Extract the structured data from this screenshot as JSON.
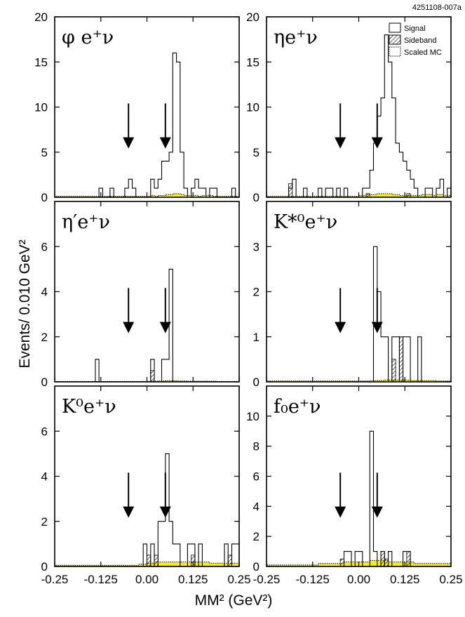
{
  "figure_id": "4251108-007a",
  "y_axis_title": "Events/ 0.010 GeV²",
  "x_axis_title": "MM² (GeV²)",
  "colors": {
    "signal": "#000000",
    "mc_fill": "#f5e830",
    "mc_line": "#000000"
  },
  "legend": [
    {
      "label": "Signal",
      "style": "open"
    },
    {
      "label": "Sideband",
      "style": "hatched"
    },
    {
      "label": "Scaled MC",
      "style": "dotted"
    }
  ],
  "chart_data": [
    {
      "type": "bar",
      "label": "φ e⁺ν",
      "xlim": [
        -0.25,
        0.25
      ],
      "ylim": [
        0,
        20
      ],
      "yticks": [
        "0",
        "5",
        "10",
        "15",
        "20"
      ],
      "xticks": [
        "-0.25",
        "-0.125",
        "0.00",
        "0.125",
        "0.25"
      ],
      "signal_cuts": [
        -0.05,
        0.05
      ],
      "signal": {
        "start": -0.25,
        "width": 0.01,
        "values": [
          0,
          0,
          0,
          0,
          0,
          0,
          0,
          0,
          0,
          0,
          0,
          0,
          1,
          0,
          0,
          1,
          0,
          0,
          0,
          1,
          2,
          1,
          0,
          0,
          0,
          0,
          2,
          1,
          2,
          4,
          4,
          5,
          16,
          15,
          5,
          1,
          0,
          1,
          2,
          1,
          1,
          0,
          1,
          1,
          0,
          0,
          0,
          0,
          1,
          0
        ]
      },
      "sideband": {
        "start": -0.25,
        "width": 0.01,
        "values": [
          0,
          0,
          0,
          0,
          0,
          0,
          0,
          0,
          0,
          0,
          0,
          0,
          0,
          0,
          0,
          0,
          0,
          0,
          0,
          0,
          0,
          0,
          0,
          0,
          0,
          0,
          0,
          0,
          0,
          0,
          0,
          0,
          0,
          0,
          0,
          0,
          0,
          0,
          0,
          0,
          0,
          0,
          0,
          0,
          0,
          0,
          0,
          0,
          0,
          0
        ]
      },
      "scaled_mc": {
        "start": -0.25,
        "width": 0.01,
        "values": [
          0.1,
          0.1,
          0.1,
          0.1,
          0.1,
          0.1,
          0.1,
          0.1,
          0.1,
          0.1,
          0.1,
          0.1,
          0.1,
          0.1,
          0.1,
          0.1,
          0.1,
          0.1,
          0.1,
          0.1,
          0.1,
          0.1,
          0.1,
          0.1,
          0.1,
          0.1,
          0.2,
          0.1,
          0.2,
          0.2,
          0.3,
          0.3,
          0.4,
          0.4,
          0.3,
          0.2,
          0.2,
          0.2,
          0.2,
          0.1,
          0.2,
          0.2,
          0.2,
          0.1,
          0.1,
          0.1,
          0.1,
          0.1,
          0.1,
          0.1
        ]
      }
    },
    {
      "type": "bar",
      "label": "ηe⁺ν",
      "xlim": [
        -0.25,
        0.25
      ],
      "ylim": [
        0,
        20
      ],
      "yticks": [
        "0",
        "5",
        "10",
        "15",
        "20"
      ],
      "xticks": [
        "-0.25",
        "-0.125",
        "0.00",
        "0.125",
        "0.25"
      ],
      "signal_cuts": [
        -0.05,
        0.05
      ],
      "signal": {
        "start": -0.25,
        "width": 0.01,
        "values": [
          0,
          0,
          0,
          0,
          0,
          0,
          1,
          2,
          0,
          0,
          1,
          0,
          0,
          0,
          1,
          0,
          1,
          1,
          0,
          1,
          0,
          1,
          0,
          0,
          0,
          0,
          1,
          1,
          3,
          6,
          9,
          11,
          18,
          15,
          11,
          6,
          5,
          4,
          3,
          2,
          1,
          0,
          0,
          1,
          1,
          0,
          1,
          2,
          0,
          1
        ]
      },
      "sideband": {
        "start": -0.25,
        "width": 0.01,
        "values": [
          0,
          0,
          0,
          0,
          0,
          0,
          1.5,
          0,
          0,
          0,
          0,
          0,
          0,
          0,
          0,
          0,
          0,
          0,
          0,
          0,
          0,
          0,
          0,
          0,
          0,
          0,
          0,
          0.4,
          0,
          0,
          0,
          0,
          0,
          0,
          0,
          0,
          0,
          0,
          0.4,
          0,
          0,
          0,
          0,
          0,
          0,
          0,
          0,
          0,
          0,
          0
        ]
      },
      "scaled_mc": {
        "start": -0.25,
        "width": 0.01,
        "values": [
          0.1,
          0.1,
          0.1,
          0.1,
          0.1,
          0.1,
          0.1,
          0.1,
          0.1,
          0.1,
          0.1,
          0.1,
          0.1,
          0.1,
          0.1,
          0.1,
          0.1,
          0.1,
          0.1,
          0.1,
          0.1,
          0.1,
          0.1,
          0.1,
          0.1,
          0.2,
          0.2,
          0.3,
          0.3,
          0.3,
          0.4,
          0.4,
          0.4,
          0.4,
          0.3,
          0.3,
          0.2,
          0.2,
          0.2,
          0.2,
          0.2,
          0.2,
          0.3,
          0.3,
          0.3,
          0.2,
          0.3,
          0.3,
          0.2,
          0.2
        ]
      }
    },
    {
      "type": "bar",
      "label": "η′e⁺ν",
      "xlim": [
        -0.25,
        0.25
      ],
      "ylim": [
        0,
        8
      ],
      "yticks": [
        "0",
        "2",
        "4",
        "6"
      ],
      "xticks": [
        "-0.25",
        "-0.125",
        "0.00",
        "0.125",
        "0.25"
      ],
      "signal_cuts": [
        -0.05,
        0.05
      ],
      "signal": {
        "start": -0.25,
        "width": 0.01,
        "values": [
          0,
          0,
          0,
          0,
          0,
          0,
          0,
          0,
          0,
          0,
          0,
          1,
          0,
          0,
          0,
          0,
          0,
          0,
          0,
          0,
          0,
          0,
          0,
          0,
          0,
          0,
          1,
          0,
          0,
          1,
          1,
          5,
          0,
          0,
          0,
          0,
          0,
          0,
          0,
          0,
          0,
          0,
          0,
          0,
          0,
          0,
          0,
          0,
          0,
          0
        ]
      },
      "sideband": {
        "start": -0.25,
        "width": 0.01,
        "values": [
          0,
          0,
          0,
          0,
          0,
          0,
          0,
          0,
          0,
          0,
          0,
          0,
          0,
          0,
          0,
          0,
          0,
          0,
          0,
          0,
          0,
          0,
          0,
          0,
          0,
          0,
          0.5,
          0,
          0,
          0,
          0,
          0,
          0,
          0,
          0,
          0,
          0,
          0,
          0,
          0,
          0,
          0,
          0,
          0,
          0,
          0,
          0,
          0,
          0,
          0
        ]
      },
      "scaled_mc": {
        "start": -0.25,
        "width": 0.01,
        "values": [
          0.02,
          0.02,
          0.02,
          0.02,
          0.02,
          0.02,
          0.02,
          0.02,
          0.02,
          0.02,
          0.02,
          0.02,
          0.02,
          0.02,
          0.02,
          0.02,
          0.02,
          0.02,
          0.02,
          0.02,
          0.02,
          0.02,
          0.02,
          0.02,
          0.02,
          0.02,
          0.03,
          0.03,
          0.04,
          0.04,
          0.05,
          0.05,
          0.05,
          0.04,
          0.04,
          0.04,
          0.03,
          0.03,
          0.03,
          0.03,
          0.03,
          0.03,
          0.03,
          0.03,
          0.02,
          0.02,
          0.02,
          0.02,
          0.02,
          0.02
        ]
      }
    },
    {
      "type": "bar",
      "label": "K*⁰e⁺ν",
      "xlim": [
        -0.25,
        0.25
      ],
      "ylim": [
        0,
        4
      ],
      "yticks": [
        "0",
        "1",
        "2",
        "3"
      ],
      "xticks": [
        "-0.25",
        "-0.125",
        "0.00",
        "0.125",
        "0.25"
      ],
      "signal_cuts": [
        -0.05,
        0.05
      ],
      "signal": {
        "start": -0.25,
        "width": 0.01,
        "values": [
          0,
          0,
          0,
          0,
          0,
          0,
          0,
          0,
          0,
          0,
          0,
          0,
          0,
          0,
          0,
          0,
          0,
          0,
          0,
          0,
          0,
          0,
          0,
          0,
          0,
          0,
          0,
          0,
          0,
          3,
          2,
          1,
          1,
          0,
          1,
          1,
          0,
          1,
          1,
          0,
          0,
          1,
          0,
          0,
          0,
          0,
          0,
          0,
          0,
          0
        ]
      },
      "sideband": {
        "start": -0.25,
        "width": 0.01,
        "values": [
          0,
          0,
          0,
          0,
          0,
          0,
          0,
          0,
          0,
          0,
          0,
          0,
          0,
          0,
          0,
          0,
          0,
          0,
          0,
          0,
          0,
          0,
          0,
          0,
          0,
          0,
          0,
          0,
          0,
          0,
          0,
          0,
          0,
          0,
          0.5,
          0,
          1,
          0,
          0,
          0,
          0,
          0,
          0,
          0,
          0,
          0,
          0,
          0,
          0,
          0
        ]
      },
      "scaled_mc": {
        "start": -0.25,
        "width": 0.01,
        "values": [
          0.02,
          0.02,
          0.02,
          0.02,
          0.02,
          0.02,
          0.02,
          0.02,
          0.02,
          0.02,
          0.02,
          0.02,
          0.02,
          0.02,
          0.02,
          0.02,
          0.02,
          0.02,
          0.02,
          0.02,
          0.02,
          0.02,
          0.02,
          0.02,
          0.02,
          0.02,
          0.02,
          0.02,
          0.03,
          0.03,
          0.03,
          0.03,
          0.04,
          0.04,
          0.04,
          0.04,
          0.04,
          0.04,
          0.04,
          0.03,
          0.03,
          0.03,
          0.03,
          0.03,
          0.03,
          0.03,
          0.02,
          0.02,
          0.02,
          0.02
        ]
      }
    },
    {
      "type": "bar",
      "label": "K⁰e⁺ν",
      "xlim": [
        -0.25,
        0.25
      ],
      "ylim": [
        0,
        8
      ],
      "yticks": [
        "0",
        "2",
        "4",
        "6"
      ],
      "xticks": [
        "-0.25",
        "-0.125",
        "0.00",
        "0.125",
        "0.25"
      ],
      "signal_cuts": [
        -0.05,
        0.05
      ],
      "signal": {
        "start": -0.25,
        "width": 0.01,
        "values": [
          0,
          0,
          0,
          0,
          0,
          0,
          0,
          0,
          0,
          0,
          0,
          0,
          0,
          0,
          0,
          0,
          0,
          0,
          0,
          0,
          0,
          0,
          0,
          0,
          1,
          0,
          1,
          0,
          2,
          2,
          5,
          2,
          1,
          1,
          0,
          0,
          1,
          1,
          0,
          1,
          0,
          0,
          0,
          0,
          0,
          0,
          1,
          0,
          1,
          1
        ]
      },
      "sideband": {
        "start": -0.25,
        "width": 0.01,
        "values": [
          0,
          0,
          0,
          0,
          0,
          0,
          0,
          0,
          0,
          0,
          0,
          0,
          0,
          0,
          0,
          0,
          0,
          0,
          0,
          0,
          0,
          0,
          0,
          0,
          0,
          0.5,
          0,
          0.5,
          0,
          0,
          0,
          0,
          0,
          0,
          0,
          0,
          0,
          0.5,
          0,
          0,
          0,
          0,
          0,
          0,
          0,
          0,
          0,
          0.5,
          0,
          0
        ]
      },
      "scaled_mc": {
        "start": -0.25,
        "width": 0.01,
        "values": [
          0.05,
          0.05,
          0.05,
          0.05,
          0.05,
          0.05,
          0.05,
          0.05,
          0.05,
          0.05,
          0.05,
          0.05,
          0.05,
          0.05,
          0.05,
          0.05,
          0.05,
          0.05,
          0.05,
          0.05,
          0.05,
          0.05,
          0.05,
          0.1,
          0.1,
          0.15,
          0.15,
          0.2,
          0.2,
          0.2,
          0.2,
          0.2,
          0.2,
          0.2,
          0.2,
          0.2,
          0.2,
          0.2,
          0.2,
          0.2,
          0.2,
          0.2,
          0.15,
          0.15,
          0.15,
          0.15,
          0.15,
          0.15,
          0.15,
          0.15
        ]
      }
    },
    {
      "type": "bar",
      "label": "f₀e⁺ν",
      "xlim": [
        -0.25,
        0.25
      ],
      "ylim": [
        0,
        12
      ],
      "yticks": [
        "0",
        "2",
        "4",
        "6",
        "8",
        "10"
      ],
      "xticks": [
        "-0.25",
        "-0.125",
        "0.00",
        "0.125",
        "0.25"
      ],
      "signal_cuts": [
        -0.05,
        0.05
      ],
      "signal": {
        "start": -0.25,
        "width": 0.01,
        "values": [
          0,
          0,
          0,
          0,
          0,
          0,
          0,
          0,
          0,
          0,
          0,
          0,
          0,
          0,
          0,
          0,
          0,
          0,
          0,
          0,
          0,
          1,
          1,
          0,
          1,
          1,
          0,
          0,
          9,
          1,
          0,
          1,
          0,
          1,
          0,
          0,
          0,
          1,
          1,
          0,
          0,
          0,
          0,
          0,
          0,
          0,
          0,
          0,
          0,
          0
        ]
      },
      "sideband": {
        "start": -0.25,
        "width": 0.01,
        "values": [
          0,
          0,
          0,
          0,
          0,
          0,
          0,
          0,
          0,
          0,
          0,
          0,
          0,
          0,
          0,
          0,
          0,
          0,
          0,
          0,
          0.5,
          0,
          0,
          0,
          0,
          0,
          0,
          0,
          0,
          0,
          0,
          1,
          0.5,
          0,
          0,
          0,
          0,
          0,
          1,
          0,
          0,
          0,
          0,
          0,
          0,
          0,
          0,
          0,
          0,
          0
        ]
      },
      "scaled_mc": {
        "start": -0.25,
        "width": 0.01,
        "values": [
          0.1,
          0.1,
          0.1,
          0.1,
          0.1,
          0.1,
          0.1,
          0.1,
          0.1,
          0.1,
          0.1,
          0.1,
          0.1,
          0.1,
          0.2,
          0.2,
          0.2,
          0.2,
          0.2,
          0.2,
          0.2,
          0.3,
          0.3,
          0.3,
          0.3,
          0.3,
          0.3,
          0.3,
          0.4,
          0.4,
          0.4,
          0.4,
          0.4,
          0.3,
          0.3,
          0.3,
          0.3,
          0.3,
          0.3,
          0.3,
          0.2,
          0.2,
          0.2,
          0.2,
          0.2,
          0.2,
          0.2,
          0.2,
          0.2,
          0.2
        ]
      }
    }
  ]
}
